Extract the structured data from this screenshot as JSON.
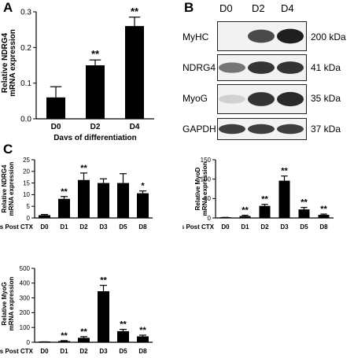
{
  "panels": {
    "a": {
      "label": "A"
    },
    "b": {
      "label": "B"
    },
    "c": {
      "label": "C"
    }
  },
  "blot": {
    "lanes": [
      "D0",
      "D2",
      "D4"
    ],
    "rows": [
      {
        "protein": "MyHC",
        "kda": "200 kDa",
        "intensity": [
          0.0,
          0.75,
          0.95
        ]
      },
      {
        "protein": "NDRG4",
        "kda": "41 kDa",
        "intensity": [
          0.55,
          0.85,
          0.85
        ]
      },
      {
        "protein": "MyoG",
        "kda": "35 kDa",
        "intensity": [
          0.12,
          0.85,
          0.9
        ]
      },
      {
        "protein": "GAPDH",
        "kda": "37 kDa",
        "intensity": [
          0.8,
          0.8,
          0.8
        ]
      }
    ]
  },
  "chart_data": [
    {
      "id": "A",
      "type": "bar",
      "categories": [
        "D0",
        "D2",
        "D4"
      ],
      "values": [
        0.06,
        0.15,
        0.26
      ],
      "errors": [
        0.03,
        0.015,
        0.025
      ],
      "significance": [
        "",
        "**",
        "**"
      ],
      "ylabel_lines": [
        "Relative NDRG4",
        "mRNA expression"
      ],
      "xlabel": "Days of differentiation",
      "xlabel_prefix": "",
      "ylim": [
        0,
        0.3
      ],
      "yticks": [
        "0.0",
        "0.1",
        "0.2",
        "0.3"
      ],
      "ytick_values": [
        0,
        0.1,
        0.2,
        0.3
      ]
    },
    {
      "id": "C1",
      "type": "bar",
      "categories": [
        "D0",
        "D1",
        "D2",
        "D3",
        "D5",
        "D8"
      ],
      "values": [
        1.2,
        8.2,
        16.3,
        15.0,
        15.0,
        10.6
      ],
      "errors": [
        0.3,
        1.0,
        3.0,
        1.8,
        4.0,
        1.0
      ],
      "significance": [
        "",
        "**",
        "**",
        "",
        "",
        "*"
      ],
      "ylabel_lines": [
        "Relative NDRG4",
        "mRNA expression"
      ],
      "xlabel": "",
      "xlabel_prefix": "Days Post CTX",
      "ylim": [
        0,
        25
      ],
      "yticks": [
        "0",
        "5",
        "10",
        "15",
        "20",
        "25"
      ],
      "ytick_values": [
        0,
        5,
        10,
        15,
        20,
        25
      ]
    },
    {
      "id": "C2",
      "type": "bar",
      "categories": [
        "D0",
        "D1",
        "D2",
        "D3",
        "D5",
        "D8"
      ],
      "values": [
        1,
        5,
        31,
        96,
        22,
        8
      ],
      "errors": [
        0.5,
        2,
        4,
        12,
        5,
        2
      ],
      "significance": [
        "",
        "**",
        "**",
        "**",
        "**",
        "**"
      ],
      "ylabel_lines": [
        "Relative MyoD",
        "mRNA expression"
      ],
      "xlabel": "",
      "xlabel_prefix": "Days Post CTX",
      "ylim": [
        0,
        150
      ],
      "yticks": [
        "0",
        "50",
        "100",
        "150"
      ],
      "ytick_values": [
        0,
        50,
        100,
        150
      ]
    },
    {
      "id": "C3",
      "type": "bar",
      "categories": [
        "D0",
        "D1",
        "D2",
        "D3",
        "D5",
        "D8"
      ],
      "values": [
        2,
        8,
        30,
        345,
        75,
        40
      ],
      "errors": [
        1,
        3,
        8,
        40,
        12,
        8
      ],
      "significance": [
        "",
        "**",
        "**",
        "**",
        "**",
        "**"
      ],
      "ylabel_lines": [
        "Relative MyoG",
        "mRNA expression"
      ],
      "xlabel": "",
      "xlabel_prefix": "Days Post CTX",
      "ylim": [
        0,
        500
      ],
      "yticks": [
        "0",
        "100",
        "200",
        "300",
        "400",
        "500"
      ],
      "ytick_values": [
        0,
        100,
        200,
        300,
        400,
        500
      ]
    }
  ]
}
